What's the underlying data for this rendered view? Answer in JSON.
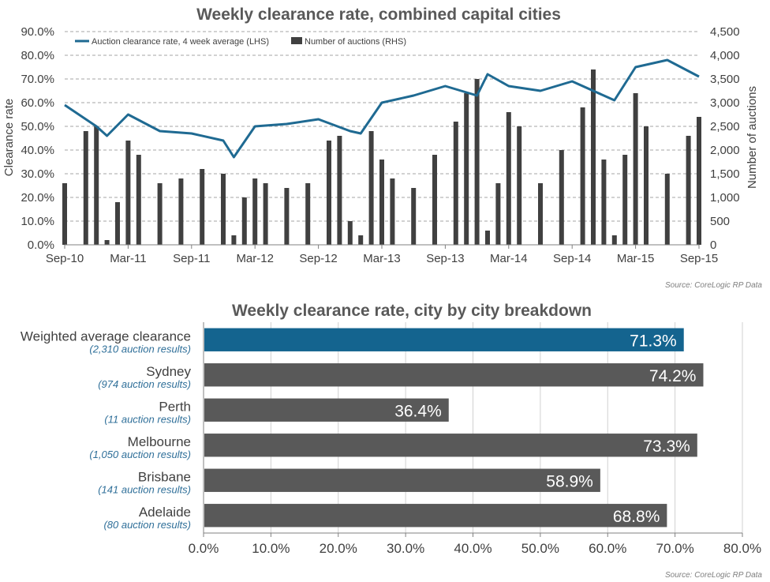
{
  "colors": {
    "clearance_line": "#1f6a92",
    "clearance_weekly_line": "#6aa6c8",
    "auction_bars": "#404040",
    "weighted_bar": "#14648f",
    "city_bar": "#595959",
    "grid": "#a6a6a6"
  },
  "chart_data": [
    {
      "type": "line",
      "title": "Weekly clearance rate, combined capital cities",
      "ylabel": "Clearance rate",
      "y2label": "Number of auctions",
      "ylim": [
        0,
        90
      ],
      "y2lim": [
        0,
        4500
      ],
      "y_ticks": [
        "0.0%",
        "10.0%",
        "20.0%",
        "30.0%",
        "40.0%",
        "50.0%",
        "60.0%",
        "70.0%",
        "80.0%",
        "90.0%"
      ],
      "y2_ticks": [
        "0",
        "500",
        "1,000",
        "1,500",
        "2,000",
        "2,500",
        "3,000",
        "3,500",
        "4,000",
        "4,500"
      ],
      "x_ticks": [
        "Sep-10",
        "Mar-11",
        "Sep-11",
        "Mar-12",
        "Sep-12",
        "Mar-13",
        "Sep-13",
        "Mar-14",
        "Sep-14",
        "Mar-15",
        "Sep-15"
      ],
      "grid": true,
      "legend_position": "top-left",
      "legend": [
        "Auction clearance rate, 4 week average (LHS)",
        "Number of auctions (RHS)"
      ],
      "series": [
        {
          "name": "Auction clearance rate, 4 week average (LHS)",
          "axis": "left",
          "x": [
            "Sep-10",
            "Dec-10",
            "Jan-11",
            "Mar-11",
            "Jun-11",
            "Sep-11",
            "Dec-11",
            "Jan-12",
            "Mar-12",
            "Jun-12",
            "Sep-12",
            "Dec-12",
            "Jan-13",
            "Mar-13",
            "Jun-13",
            "Sep-13",
            "Dec-13",
            "Jan-14",
            "Mar-14",
            "Jun-14",
            "Sep-14",
            "Dec-14",
            "Jan-15",
            "Mar-15",
            "Jun-15",
            "Sep-15"
          ],
          "values": [
            59,
            50,
            46,
            55,
            48,
            47,
            44,
            37,
            50,
            51,
            53,
            48,
            47,
            60,
            63,
            67,
            63,
            72,
            67,
            65,
            69,
            63,
            61,
            75,
            78,
            71
          ]
        },
        {
          "name": "Number of auctions (RHS)",
          "axis": "right",
          "x": [
            "Sep-10",
            "Nov-10",
            "Dec-10",
            "Jan-11",
            "Feb-11",
            "Mar-11",
            "Apr-11",
            "Jun-11",
            "Aug-11",
            "Oct-11",
            "Dec-11",
            "Jan-12",
            "Feb-12",
            "Mar-12",
            "Apr-12",
            "Jun-12",
            "Aug-12",
            "Oct-12",
            "Nov-12",
            "Dec-12",
            "Jan-13",
            "Feb-13",
            "Mar-13",
            "Apr-13",
            "Jun-13",
            "Aug-13",
            "Oct-13",
            "Nov-13",
            "Dec-13",
            "Jan-14",
            "Feb-14",
            "Mar-14",
            "Apr-14",
            "Jun-14",
            "Aug-14",
            "Oct-14",
            "Nov-14",
            "Dec-14",
            "Jan-15",
            "Feb-15",
            "Mar-15",
            "Apr-15",
            "Jun-15",
            "Aug-15",
            "Sep-15"
          ],
          "values": [
            1300,
            2400,
            2500,
            100,
            900,
            2200,
            1900,
            1300,
            1400,
            1600,
            1500,
            200,
            1000,
            1400,
            1300,
            1200,
            1300,
            2200,
            2300,
            500,
            200,
            2400,
            1800,
            1400,
            1200,
            1900,
            2600,
            3200,
            3500,
            300,
            1300,
            2800,
            2500,
            1300,
            2000,
            2900,
            3700,
            1800,
            200,
            1900,
            3200,
            2500,
            1500,
            2300,
            2700
          ]
        }
      ],
      "source": "Source: CoreLogic  RP Data"
    },
    {
      "type": "bar",
      "orientation": "horizontal",
      "title": "Weekly clearance rate, city by city breakdown",
      "categories": [
        "Weighted average clearance",
        "Sydney",
        "Perth",
        "Melbourne",
        "Brisbane",
        "Adelaide"
      ],
      "subtitles": [
        "(2,310 auction results)",
        "(974 auction results)",
        "(11 auction results)",
        "(1,050 auction results)",
        "(141 auction results)",
        "(80 auction results)"
      ],
      "values": [
        71.3,
        74.2,
        36.4,
        73.3,
        58.9,
        68.8
      ],
      "value_labels": [
        "71.3%",
        "74.2%",
        "36.4%",
        "73.3%",
        "58.9%",
        "68.8%"
      ],
      "xlim": [
        0,
        80
      ],
      "x_ticks": [
        "0.0%",
        "10.0%",
        "20.0%",
        "30.0%",
        "40.0%",
        "50.0%",
        "60.0%",
        "70.0%",
        "80.0%"
      ],
      "source": "Source: CoreLogic  RP Data"
    }
  ]
}
